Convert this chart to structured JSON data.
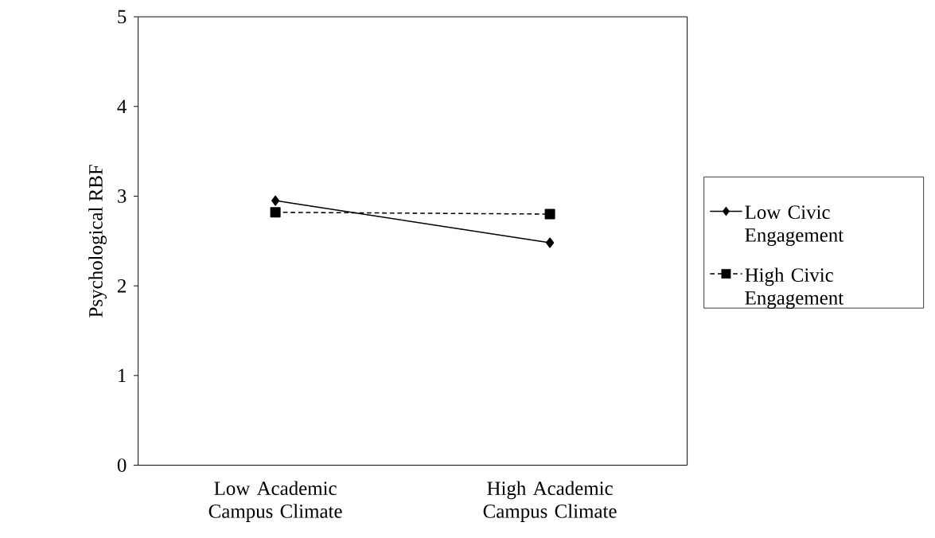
{
  "chart_data": {
    "type": "line",
    "ylabel": "Psychological RBF",
    "categories": [
      "Low Academic Campus Climate",
      "High Academic Campus Climate"
    ],
    "series": [
      {
        "name": "Low Civic Engagement",
        "color": "#000000",
        "values": [
          2.95,
          2.48
        ],
        "marker": "diamond",
        "line_style": "solid"
      },
      {
        "name": "High Civic Engagement",
        "color": "#000000",
        "values": [
          2.82,
          2.8
        ],
        "marker": "square",
        "line_style": "dashed"
      }
    ],
    "ylim": [
      0,
      5
    ],
    "yticks": [
      0,
      1,
      2,
      3,
      4,
      5
    ],
    "grid": false,
    "legend": "right"
  }
}
